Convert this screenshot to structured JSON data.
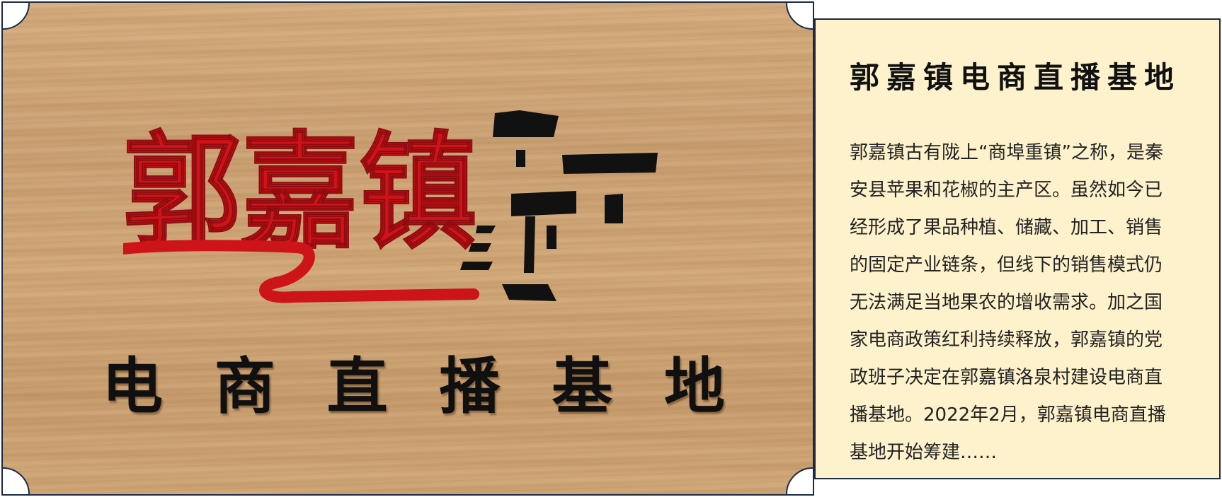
{
  "sign": {
    "logo_text": "郭嘉镇",
    "subtitle_chars": [
      "电",
      "商",
      "直",
      "播",
      "基",
      "地"
    ]
  },
  "card": {
    "title": "郭嘉镇电商直播基地",
    "body_lines": [
      "郭嘉镇古有陇上“商埠重镇”之称，是秦",
      "安县苹果和花椒的主产区。虽然如今已",
      "经形成了果品种植、储藏、加工、销售",
      "的固定产业链条，但线下的销售模式仍",
      "无法满足当地果农的增收需求。加之国",
      "家电商政策红利持续释放，郭嘉镇的党",
      "政班子决定在郭嘉镇洛泉村建设电商直",
      "播基地。2022年2月，郭嘉镇电商直播",
      "基地开始筹建……"
    ]
  },
  "colors": {
    "logo_red": "#cc1419",
    "ink_black": "#101010",
    "card_background": "#fdf2cc",
    "border_navy": "#1d2a44"
  }
}
